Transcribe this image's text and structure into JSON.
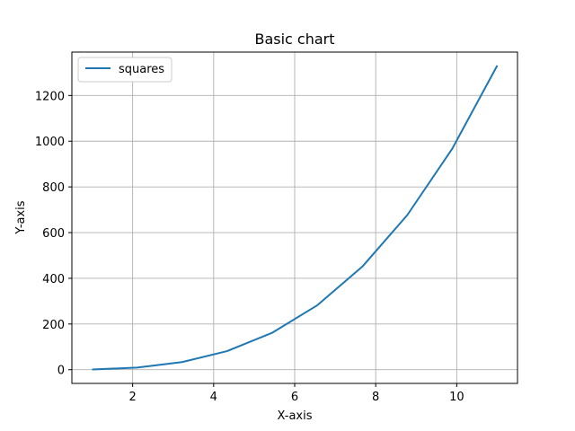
{
  "chart_data": {
    "type": "line",
    "title": "Basic chart",
    "xlabel": "X-axis",
    "ylabel": "Y-axis",
    "xlim": [
      0.5,
      11.5
    ],
    "ylim": [
      -60,
      1390
    ],
    "xticks": [
      2,
      4,
      6,
      8,
      10
    ],
    "yticks": [
      0,
      200,
      400,
      600,
      800,
      1000,
      1200
    ],
    "grid": true,
    "legend_position": "top-left",
    "series": [
      {
        "name": "squares",
        "color": "#1f77b4",
        "x": [
          1,
          2.11,
          3.22,
          4.33,
          5.44,
          6.56,
          7.67,
          8.78,
          9.89,
          11
        ],
        "y": [
          1,
          9.3,
          33.4,
          81.3,
          161.1,
          282.2,
          451.2,
          676.8,
          967.4,
          1331
        ]
      }
    ]
  }
}
